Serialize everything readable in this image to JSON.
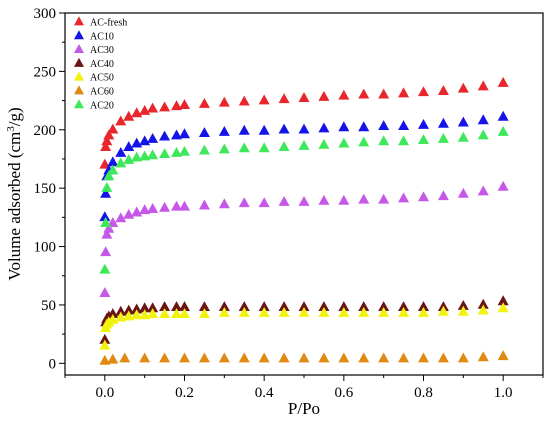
{
  "chart_data": {
    "type": "scatter",
    "title": "",
    "xlabel": "P/Po",
    "ylabel": "Volume adsorbed (cm³/g)",
    "ylabel_parts": {
      "prefix": "Volume adsorbed (cm",
      "sup": "3",
      "suffix": "/g)"
    },
    "xlim": [
      -0.1,
      1.1
    ],
    "ylim": [
      -10,
      300
    ],
    "x_ticks": [
      0.0,
      0.2,
      0.4,
      0.6,
      0.8,
      1.0
    ],
    "x_tick_labels": [
      "0.0",
      "0.2",
      "0.4",
      "0.6",
      "0.8",
      "1.0"
    ],
    "y_ticks": [
      0,
      50,
      100,
      150,
      200,
      250,
      300
    ],
    "y_tick_labels": [
      "0",
      "50",
      "100",
      "150",
      "200",
      "250",
      "300"
    ],
    "grid": false,
    "legend_position": "top-left",
    "marker": "triangle",
    "series": [
      {
        "name": "AC-fresh",
        "color": "#e8262b",
        "x": [
          0.0,
          0.002,
          0.005,
          0.01,
          0.02,
          0.04,
          0.06,
          0.08,
          0.1,
          0.12,
          0.15,
          0.18,
          0.2,
          0.25,
          0.3,
          0.35,
          0.4,
          0.45,
          0.5,
          0.55,
          0.6,
          0.65,
          0.7,
          0.75,
          0.8,
          0.85,
          0.9,
          0.95,
          1.0
        ],
        "y": [
          170,
          185,
          190,
          195,
          200,
          207,
          211,
          214,
          216,
          218,
          219,
          220,
          221,
          222,
          223,
          224,
          225,
          226,
          227,
          228,
          229,
          230,
          230,
          231,
          232,
          233,
          235,
          237,
          240
        ]
      },
      {
        "name": "AC10",
        "color": "#1414e8",
        "x": [
          0.0,
          0.002,
          0.005,
          0.01,
          0.02,
          0.04,
          0.06,
          0.08,
          0.1,
          0.12,
          0.15,
          0.18,
          0.2,
          0.25,
          0.3,
          0.35,
          0.4,
          0.45,
          0.5,
          0.55,
          0.6,
          0.65,
          0.7,
          0.75,
          0.8,
          0.85,
          0.9,
          0.95,
          1.0
        ],
        "y": [
          125,
          145,
          160,
          165,
          172,
          180,
          185,
          188,
          190,
          192,
          194,
          195,
          196,
          197,
          198,
          199,
          199,
          200,
          200,
          201,
          202,
          202,
          203,
          203,
          204,
          205,
          206,
          208,
          211
        ]
      },
      {
        "name": "AC30",
        "color": "#c658e8",
        "x": [
          0.0,
          0.002,
          0.005,
          0.01,
          0.02,
          0.04,
          0.06,
          0.08,
          0.1,
          0.12,
          0.15,
          0.18,
          0.2,
          0.25,
          0.3,
          0.35,
          0.4,
          0.45,
          0.5,
          0.55,
          0.6,
          0.65,
          0.7,
          0.75,
          0.8,
          0.85,
          0.9,
          0.95,
          1.0
        ],
        "y": [
          60,
          95,
          110,
          115,
          120,
          124,
          127,
          129,
          131,
          132,
          133,
          134,
          134,
          135,
          136,
          137,
          137,
          138,
          138,
          139,
          139,
          140,
          140,
          141,
          142,
          143,
          145,
          147,
          151
        ]
      },
      {
        "name": "AC40",
        "color": "#6b1414",
        "x": [
          0.0,
          0.002,
          0.005,
          0.01,
          0.02,
          0.04,
          0.06,
          0.08,
          0.1,
          0.12,
          0.15,
          0.18,
          0.2,
          0.25,
          0.3,
          0.35,
          0.4,
          0.45,
          0.5,
          0.55,
          0.6,
          0.65,
          0.7,
          0.75,
          0.8,
          0.85,
          0.9,
          0.95,
          1.0
        ],
        "y": [
          20,
          35,
          38,
          40,
          42,
          44,
          45,
          46,
          47,
          47,
          48,
          48,
          48,
          48,
          48,
          48,
          48,
          48,
          48,
          48,
          48,
          48,
          48,
          48,
          48,
          48,
          49,
          50,
          53
        ]
      },
      {
        "name": "AC50",
        "color": "#f2f20f",
        "x": [
          0.0,
          0.002,
          0.005,
          0.01,
          0.02,
          0.04,
          0.06,
          0.08,
          0.1,
          0.12,
          0.15,
          0.18,
          0.2,
          0.25,
          0.3,
          0.35,
          0.4,
          0.45,
          0.5,
          0.55,
          0.6,
          0.65,
          0.7,
          0.75,
          0.8,
          0.85,
          0.9,
          0.95,
          1.0
        ],
        "y": [
          15,
          30,
          33,
          35,
          37,
          39,
          40,
          41,
          41,
          42,
          42,
          42,
          42,
          42,
          43,
          43,
          43,
          43,
          43,
          43,
          43,
          43,
          43,
          43,
          43,
          44,
          44,
          45,
          47
        ]
      },
      {
        "name": "AC60",
        "color": "#e08a12",
        "x": [
          0.0,
          0.02,
          0.05,
          0.1,
          0.15,
          0.2,
          0.25,
          0.3,
          0.35,
          0.4,
          0.45,
          0.5,
          0.55,
          0.6,
          0.65,
          0.7,
          0.75,
          0.8,
          0.85,
          0.9,
          0.95,
          1.0
        ],
        "y": [
          2,
          3,
          4,
          4,
          4,
          4,
          4,
          4,
          4,
          4,
          4,
          4,
          4,
          4,
          4,
          4,
          4,
          4,
          4,
          4,
          5,
          6
        ]
      },
      {
        "name": "AC20",
        "color": "#3ee85a",
        "x": [
          0.0,
          0.002,
          0.005,
          0.01,
          0.02,
          0.04,
          0.06,
          0.08,
          0.1,
          0.12,
          0.15,
          0.18,
          0.2,
          0.25,
          0.3,
          0.35,
          0.4,
          0.45,
          0.5,
          0.55,
          0.6,
          0.65,
          0.7,
          0.75,
          0.8,
          0.85,
          0.9,
          0.95,
          1.0
        ],
        "y": [
          80,
          120,
          150,
          160,
          165,
          171,
          174,
          176,
          177,
          178,
          179,
          180,
          181,
          182,
          183,
          184,
          184,
          185,
          186,
          187,
          188,
          189,
          190,
          190,
          191,
          192,
          193,
          195,
          198
        ]
      }
    ]
  }
}
